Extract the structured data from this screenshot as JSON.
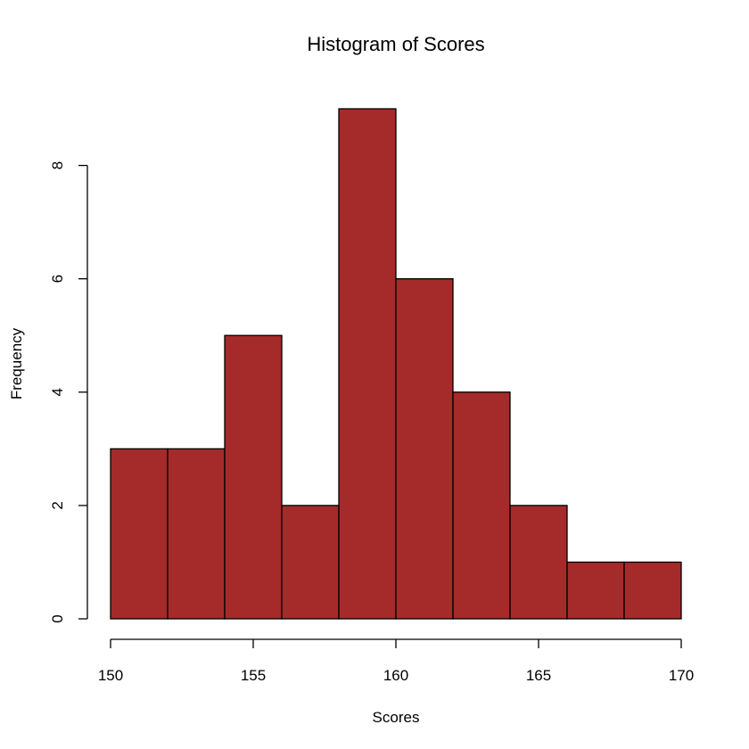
{
  "chart_data": {
    "type": "bar",
    "title": "Histogram of Scores",
    "xlabel": "Scores",
    "ylabel": "Frequency",
    "bins": [
      {
        "start": 150,
        "end": 152,
        "count": 3
      },
      {
        "start": 152,
        "end": 154,
        "count": 3
      },
      {
        "start": 154,
        "end": 156,
        "count": 5
      },
      {
        "start": 156,
        "end": 158,
        "count": 2
      },
      {
        "start": 158,
        "end": 160,
        "count": 9
      },
      {
        "start": 160,
        "end": 162,
        "count": 6
      },
      {
        "start": 162,
        "end": 164,
        "count": 4
      },
      {
        "start": 164,
        "end": 166,
        "count": 2
      },
      {
        "start": 166,
        "end": 168,
        "count": 1
      },
      {
        "start": 168,
        "end": 170,
        "count": 1
      }
    ],
    "xticks": [
      150,
      155,
      160,
      165,
      170
    ],
    "yticks": [
      0,
      2,
      4,
      6,
      8
    ],
    "xlim": [
      150,
      170
    ],
    "ylim": [
      0,
      9
    ],
    "grid": false,
    "bar_color": "#a52a2a",
    "edge_color": "#000000"
  }
}
